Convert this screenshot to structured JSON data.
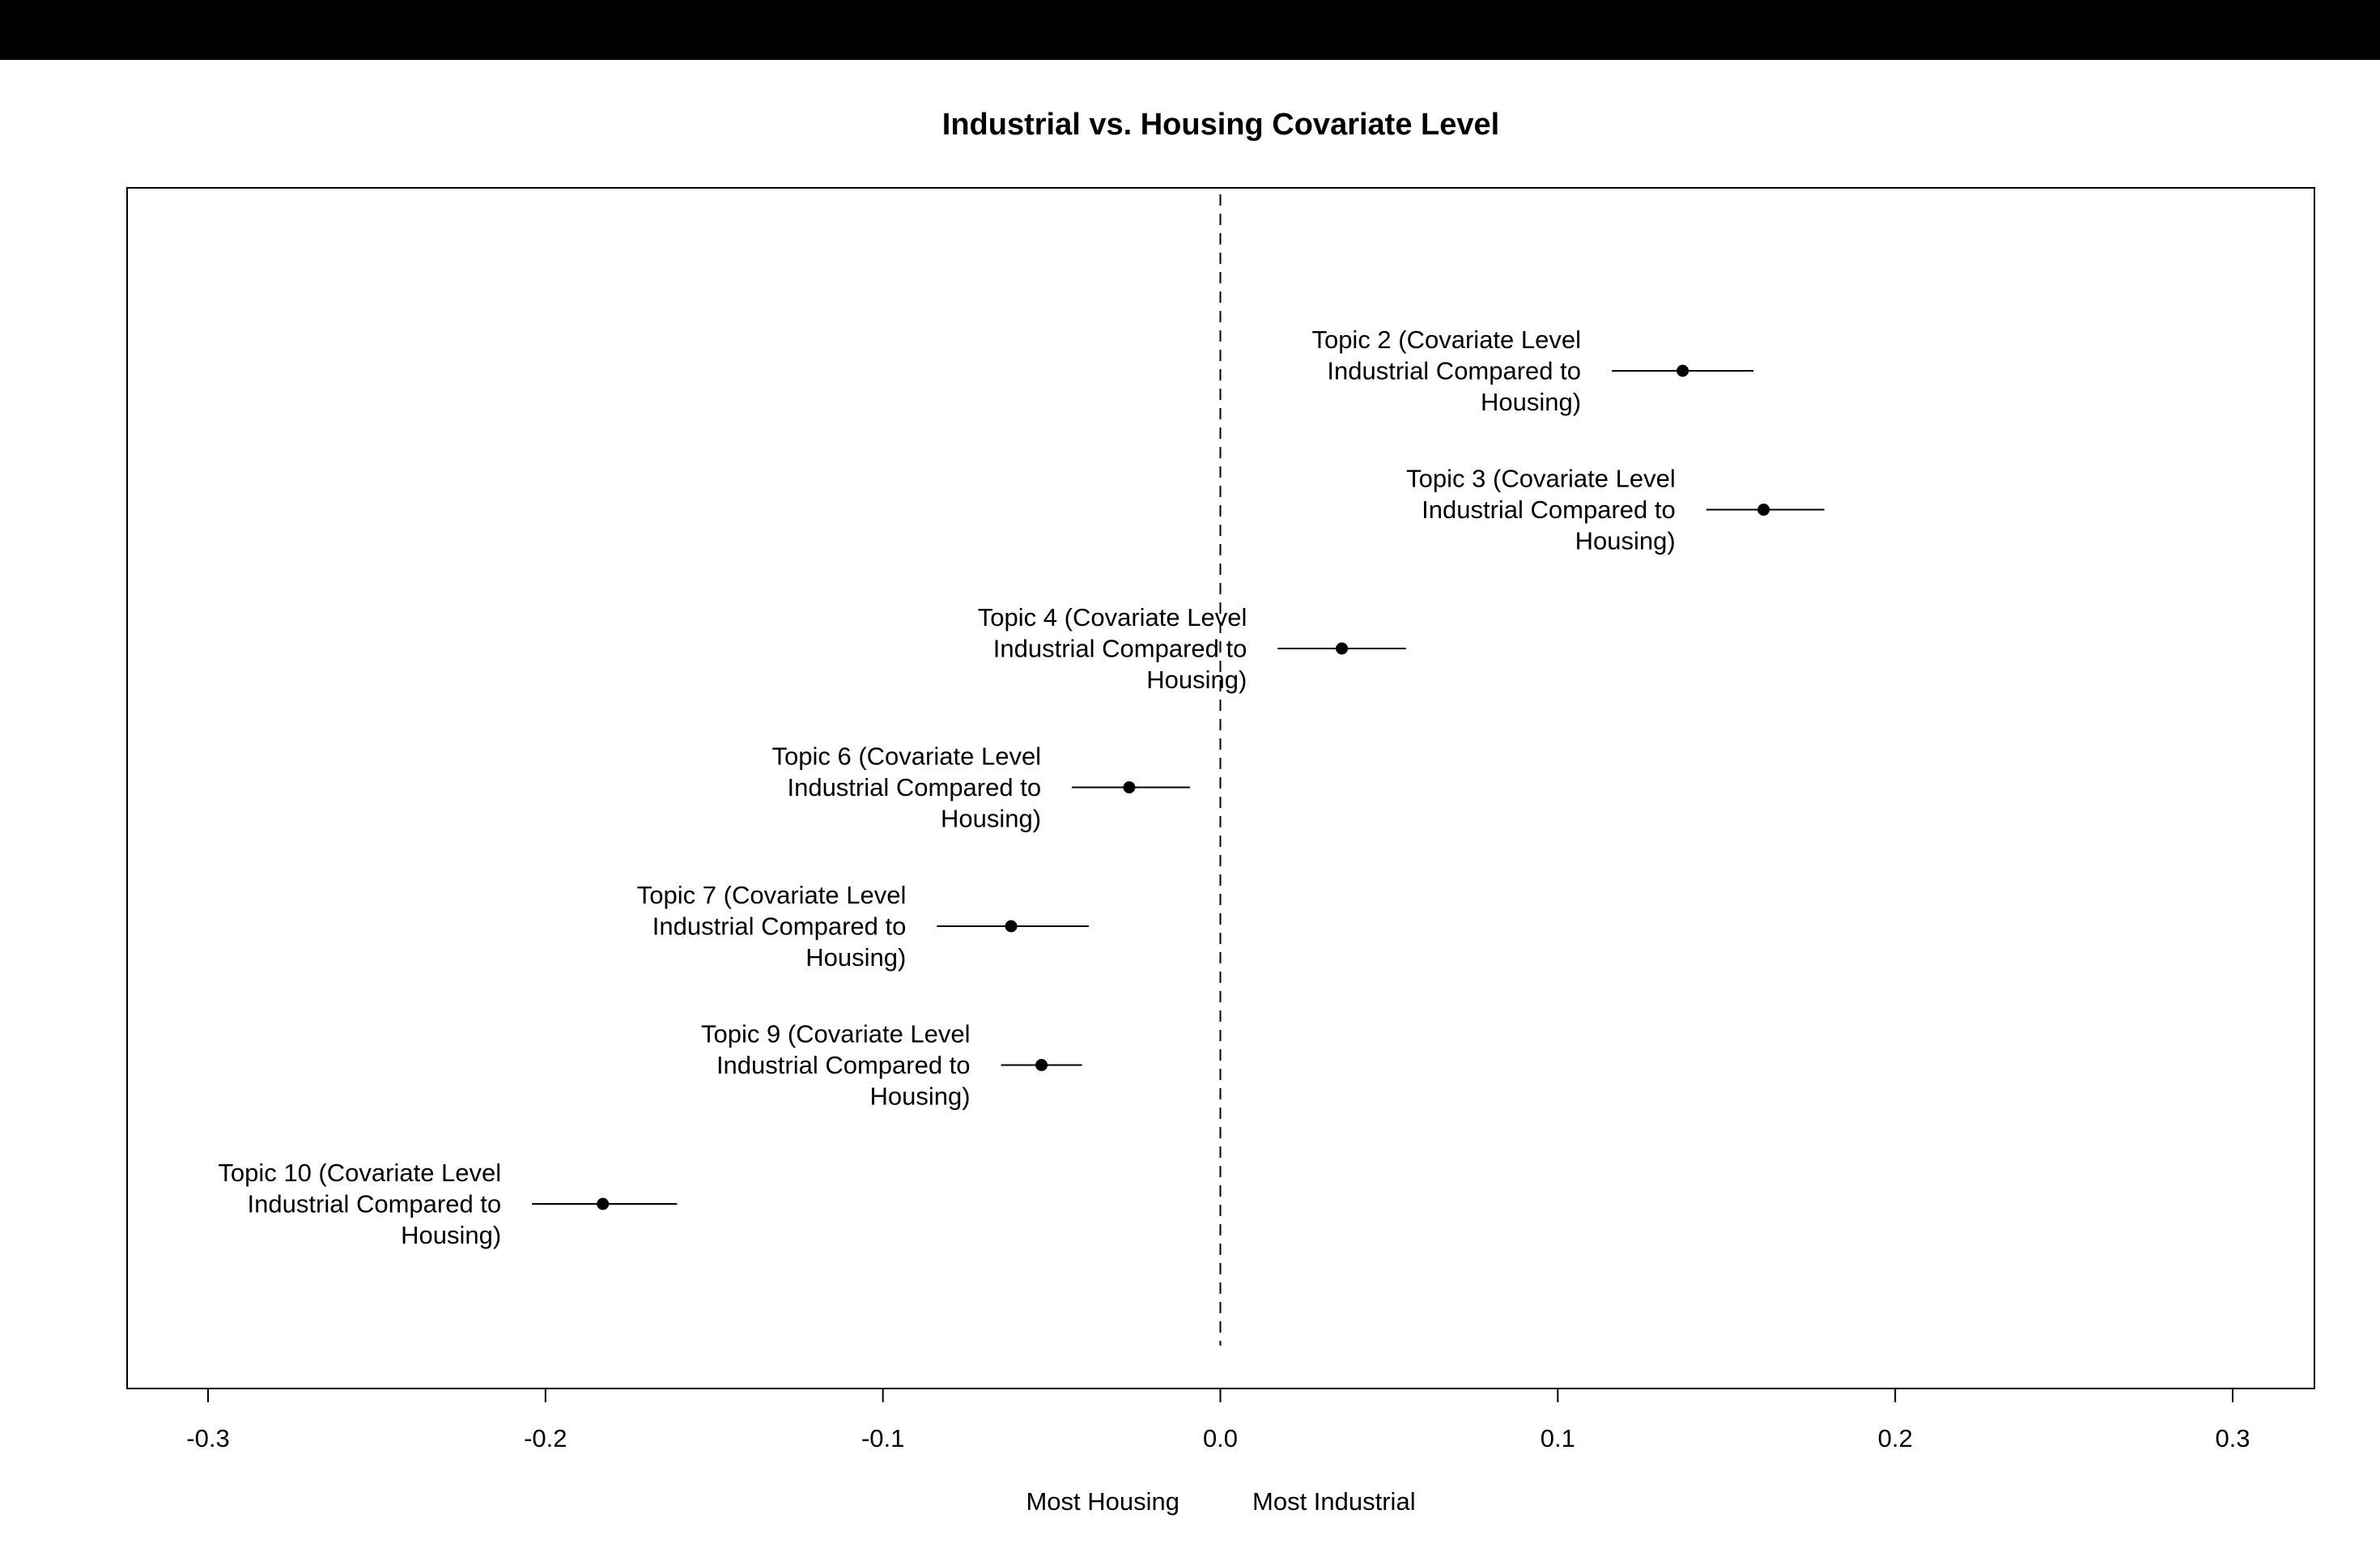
{
  "chart_data": {
    "type": "scatter",
    "title": "Industrial vs. Housing Covariate Level",
    "xlabel": "",
    "ylabel": "",
    "xlim": [
      -0.3,
      0.3
    ],
    "x_ticks": [
      "-0.3",
      "-0.2",
      "-0.1",
      "0.0",
      "0.1",
      "0.2",
      "0.3"
    ],
    "x_tick_values": [
      -0.3,
      -0.2,
      -0.1,
      0.0,
      0.1,
      0.2,
      0.3
    ],
    "reference_line": 0.0,
    "axis_notes": {
      "left": "Most Housing",
      "right": "Most Industrial"
    },
    "grid": false,
    "points": [
      {
        "label": [
          "Topic 2 (Covariate Level",
          "Industrial Compared to",
          "Housing)"
        ],
        "estimate": 0.137,
        "ci_low": 0.116,
        "ci_high": 0.158
      },
      {
        "label": [
          "Topic 3 (Covariate Level",
          "Industrial Compared to",
          "Housing)"
        ],
        "estimate": 0.161,
        "ci_low": 0.144,
        "ci_high": 0.179
      },
      {
        "label": [
          "Topic 4 (Covariate Level",
          "Industrial Compared to",
          "Housing)"
        ],
        "estimate": 0.036,
        "ci_low": 0.017,
        "ci_high": 0.055
      },
      {
        "label": [
          "Topic 6 (Covariate Level",
          "Industrial Compared to",
          "Housing)"
        ],
        "estimate": -0.027,
        "ci_low": -0.044,
        "ci_high": -0.009
      },
      {
        "label": [
          "Topic 7 (Covariate Level",
          "Industrial Compared to",
          "Housing)"
        ],
        "estimate": -0.062,
        "ci_low": -0.084,
        "ci_high": -0.039
      },
      {
        "label": [
          "Topic 9 (Covariate Level",
          "Industrial Compared to",
          "Housing)"
        ],
        "estimate": -0.053,
        "ci_low": -0.065,
        "ci_high": -0.041
      },
      {
        "label": [
          "Topic 10 (Covariate Level",
          "Industrial Compared to",
          "Housing)"
        ],
        "estimate": -0.183,
        "ci_low": -0.204,
        "ci_high": -0.161
      }
    ]
  }
}
